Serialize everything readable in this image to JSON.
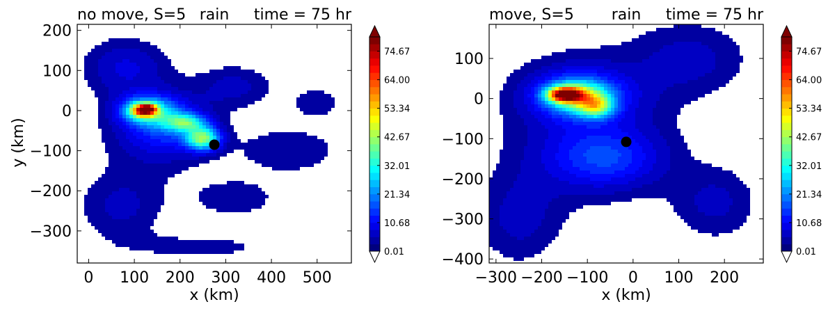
{
  "colors": {
    "title_left": "#ff0000",
    "title_center": "#000000",
    "title_right": "#0000ff",
    "colormap": [
      "#00007f",
      "#0000ff",
      "#007fff",
      "#00ffff",
      "#7fff7f",
      "#ffff00",
      "#ff7f00",
      "#ff0000",
      "#7f0000"
    ]
  },
  "chart_data": [
    {
      "type": "heatmap",
      "panel": "left",
      "titles": {
        "left": "no move, S=5",
        "center": "rain",
        "right": "time = 75 hr"
      },
      "xlabel": "x (km)",
      "ylabel": "y (km)",
      "xlim": [
        -25,
        575
      ],
      "ylim": [
        -380,
        215
      ],
      "xticks": [
        0,
        100,
        200,
        300,
        400,
        500
      ],
      "yticks": [
        200,
        100,
        0,
        -100,
        -200,
        -300
      ],
      "marker": {
        "x": 275,
        "y": -85
      },
      "colorbar": {
        "ticks": [
          "0.01",
          "10.68",
          "21.34",
          "32.01",
          "42.67",
          "53.34",
          "64.00",
          "74.67"
        ],
        "extend": "both",
        "min": 0.01,
        "max": 80
      },
      "blobs": [
        {
          "x": 150,
          "y": -50,
          "rx": 160,
          "ry": 140,
          "v": 6
        },
        {
          "x": 130,
          "y": 0,
          "rx": 75,
          "ry": 45,
          "v": 25
        },
        {
          "x": 170,
          "y": -40,
          "rx": 105,
          "ry": 80,
          "v": 10
        },
        {
          "x": 120,
          "y": 0,
          "rx": 35,
          "ry": 22,
          "v": 48
        },
        {
          "x": 130,
          "y": 5,
          "rx": 22,
          "ry": 12,
          "v": 28
        },
        {
          "x": 250,
          "y": -70,
          "rx": 45,
          "ry": 35,
          "v": 38
        },
        {
          "x": 210,
          "y": -30,
          "rx": 55,
          "ry": 28,
          "v": 28
        },
        {
          "x": 80,
          "y": 110,
          "rx": 115,
          "ry": 90,
          "v": 8
        },
        {
          "x": 440,
          "y": -100,
          "rx": 150,
          "ry": 80,
          "v": 5
        },
        {
          "x": 320,
          "y": 60,
          "rx": 110,
          "ry": 70,
          "v": 6
        },
        {
          "x": 70,
          "y": -240,
          "rx": 120,
          "ry": 110,
          "v": 6
        },
        {
          "x": 320,
          "y": -220,
          "rx": 120,
          "ry": 60,
          "v": 5
        },
        {
          "x": 500,
          "y": 20,
          "rx": 70,
          "ry": 50,
          "v": 5
        },
        {
          "x": 250,
          "y": -340,
          "rx": 220,
          "ry": 45,
          "v": 4
        }
      ]
    },
    {
      "type": "heatmap",
      "panel": "right",
      "titles": {
        "left": "move, S=5",
        "center": "rain",
        "right": "time = 75 hr"
      },
      "xlabel": "x (km)",
      "ylabel": "",
      "xlim": [
        -315,
        285
      ],
      "ylim": [
        -410,
        185
      ],
      "xticks": [
        -300,
        -200,
        -100,
        0,
        100,
        200
      ],
      "yticks": [
        100,
        0,
        -100,
        -200,
        -300,
        -400
      ],
      "marker": {
        "x": -15,
        "y": -108
      },
      "colorbar": {
        "ticks": [
          "0.01",
          "10.68",
          "21.34",
          "32.01",
          "42.67",
          "53.34",
          "64.00",
          "74.67"
        ],
        "extend": "both",
        "min": 0.01,
        "max": 80
      },
      "blobs": [
        {
          "x": -100,
          "y": -60,
          "rx": 230,
          "ry": 230,
          "v": 7
        },
        {
          "x": -120,
          "y": 10,
          "rx": 130,
          "ry": 75,
          "v": 16
        },
        {
          "x": -120,
          "y": 5,
          "rx": 75,
          "ry": 45,
          "v": 30
        },
        {
          "x": -150,
          "y": 10,
          "rx": 45,
          "ry": 22,
          "v": 58
        },
        {
          "x": -80,
          "y": -20,
          "rx": 45,
          "ry": 35,
          "v": 28
        },
        {
          "x": -60,
          "y": -150,
          "rx": 150,
          "ry": 90,
          "v": 12
        },
        {
          "x": 130,
          "y": 100,
          "rx": 160,
          "ry": 120,
          "v": 6
        },
        {
          "x": 180,
          "y": -260,
          "rx": 120,
          "ry": 120,
          "v": 6
        },
        {
          "x": -250,
          "y": -300,
          "rx": 120,
          "ry": 150,
          "v": 6
        }
      ]
    }
  ]
}
